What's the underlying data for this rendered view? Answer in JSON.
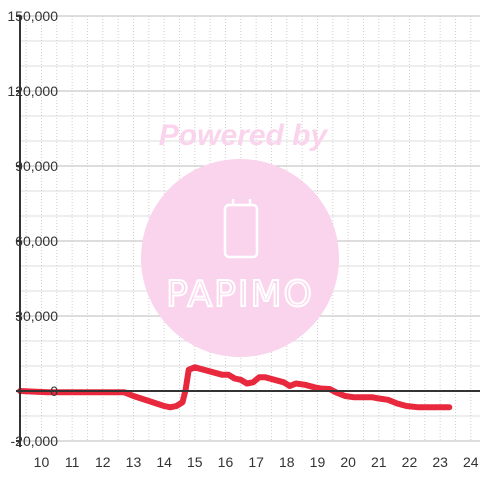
{
  "chart_data": {
    "type": "line",
    "title": "",
    "xlabel": "",
    "ylabel": "",
    "xlim": [
      9.3,
      24.3
    ],
    "ylim": [
      -20000,
      150000
    ],
    "x_ticks": [
      10,
      11,
      12,
      13,
      14,
      15,
      16,
      17,
      18,
      19,
      20,
      21,
      22,
      23,
      24
    ],
    "x_tick_labels": [
      "10",
      "11",
      "12",
      "13",
      "14",
      "15",
      "16",
      "17",
      "18",
      "19",
      "20",
      "21",
      "22",
      "23",
      "24"
    ],
    "y_ticks": [
      -20000,
      0,
      30000,
      60000,
      90000,
      120000,
      150000
    ],
    "y_tick_labels": [
      "-20,000",
      "0",
      "30,000",
      "60,000",
      "90,000",
      "120,000",
      "150,000"
    ],
    "grid": true,
    "legend": "none",
    "series": [
      {
        "color": "#e8283c",
        "x": [
          9.3,
          10.2,
          11.0,
          12.0,
          12.7,
          13.0,
          13.5,
          14.0,
          14.2,
          14.4,
          14.6,
          14.7,
          14.8,
          15.0,
          15.3,
          15.6,
          15.9,
          16.1,
          16.3,
          16.5,
          16.7,
          16.9,
          17.1,
          17.3,
          17.6,
          17.9,
          18.1,
          18.3,
          18.6,
          18.9,
          19.1,
          19.4,
          19.6,
          19.9,
          20.2,
          20.5,
          20.8,
          21.0,
          21.3,
          21.6,
          21.9,
          22.3,
          22.7,
          23.0,
          23.3
        ],
        "y": [
          0,
          -500,
          -500,
          -500,
          -500,
          -2000,
          -4000,
          -6000,
          -6500,
          -6000,
          -4500,
          500,
          8500,
          9500,
          8500,
          7500,
          6500,
          6500,
          5000,
          4500,
          3000,
          3500,
          5500,
          5500,
          4500,
          3500,
          2000,
          3000,
          2500,
          1500,
          1000,
          800,
          -500,
          -2000,
          -2500,
          -2500,
          -2500,
          -3000,
          -3500,
          -5000,
          -6000,
          -6500,
          -6500,
          -6500,
          -6500
        ]
      }
    ]
  },
  "watermark": {
    "text": "Powered by",
    "logo_text": "PAPIMO",
    "color": "#fad4ec"
  }
}
